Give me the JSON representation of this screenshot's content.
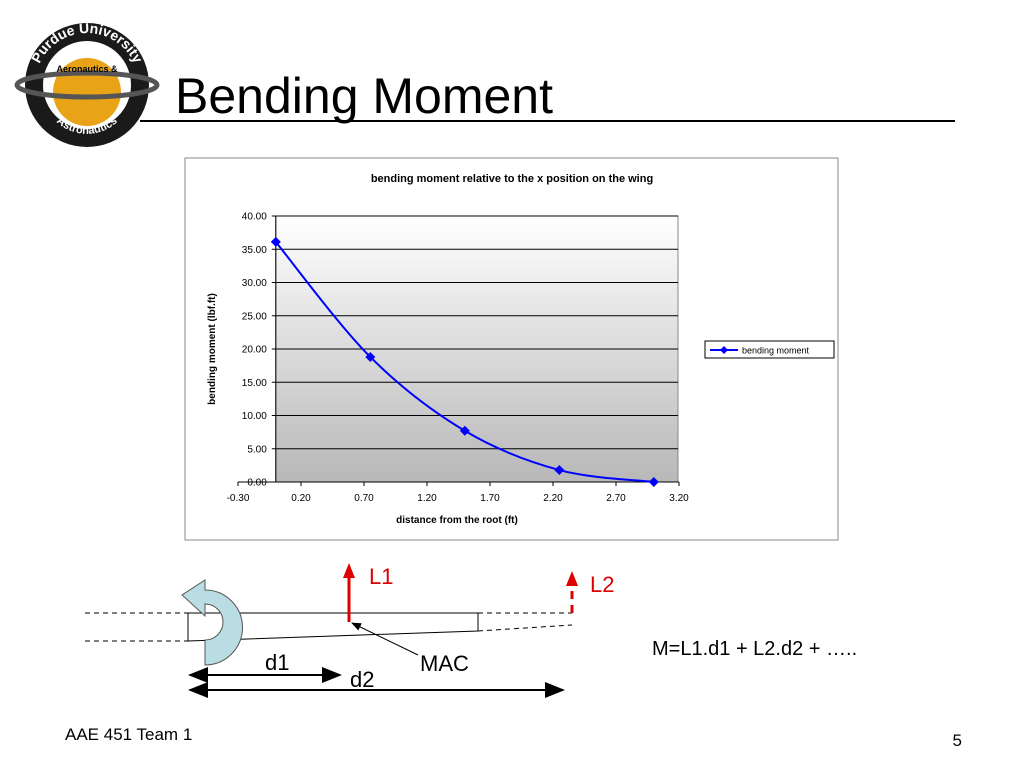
{
  "slide": {
    "title": "Bending Moment",
    "footer": "AAE 451 Team 1",
    "page_number": "5"
  },
  "logo": {
    "top": "Purdue University",
    "middle": "Aeronautics &",
    "bottom": "Astronautics"
  },
  "chart_data": {
    "type": "line",
    "title": "bending moment relative to the x position on the wing",
    "x_label": "distance from the root (ft)",
    "y_label": "bending moment (lbf.ft)",
    "x": [
      0,
      0.75,
      1.5,
      2.25,
      3.0
    ],
    "series": [
      {
        "name": "bending moment",
        "color": "#0000ff",
        "values": [
          36.1,
          18.8,
          7.7,
          1.8,
          0
        ]
      }
    ],
    "xlim": [
      -0.3,
      3.2
    ],
    "xticks": [
      {
        "value": -0.3,
        "label": "-0.30"
      },
      {
        "value": 0.2,
        "label": "0.20"
      },
      {
        "value": 0.7,
        "label": "0.70"
      },
      {
        "value": 1.2,
        "label": "1.20"
      },
      {
        "value": 1.7,
        "label": "1.70"
      },
      {
        "value": 2.2,
        "label": "2.20"
      },
      {
        "value": 2.7,
        "label": "2.70"
      },
      {
        "value": 3.2,
        "label": "3.20"
      }
    ],
    "ylim": [
      0,
      40
    ],
    "yticks": [
      {
        "value": 0,
        "label": "0.00"
      },
      {
        "value": 5,
        "label": "5.00"
      },
      {
        "value": 10,
        "label": "10.00"
      },
      {
        "value": 15,
        "label": "15.00"
      },
      {
        "value": 20,
        "label": "20.00"
      },
      {
        "value": 25,
        "label": "25.00"
      },
      {
        "value": 30,
        "label": "30.00"
      },
      {
        "value": 35,
        "label": "35.00"
      },
      {
        "value": 40,
        "label": "40.00"
      }
    ],
    "grid": true,
    "legend": "right"
  },
  "diagram": {
    "lift1": "L1",
    "lift2": "L2",
    "mac": "MAC",
    "dist1": "d1",
    "dist2": "d2",
    "formula": "M=L1.d1 + L2.d2 + ….."
  }
}
